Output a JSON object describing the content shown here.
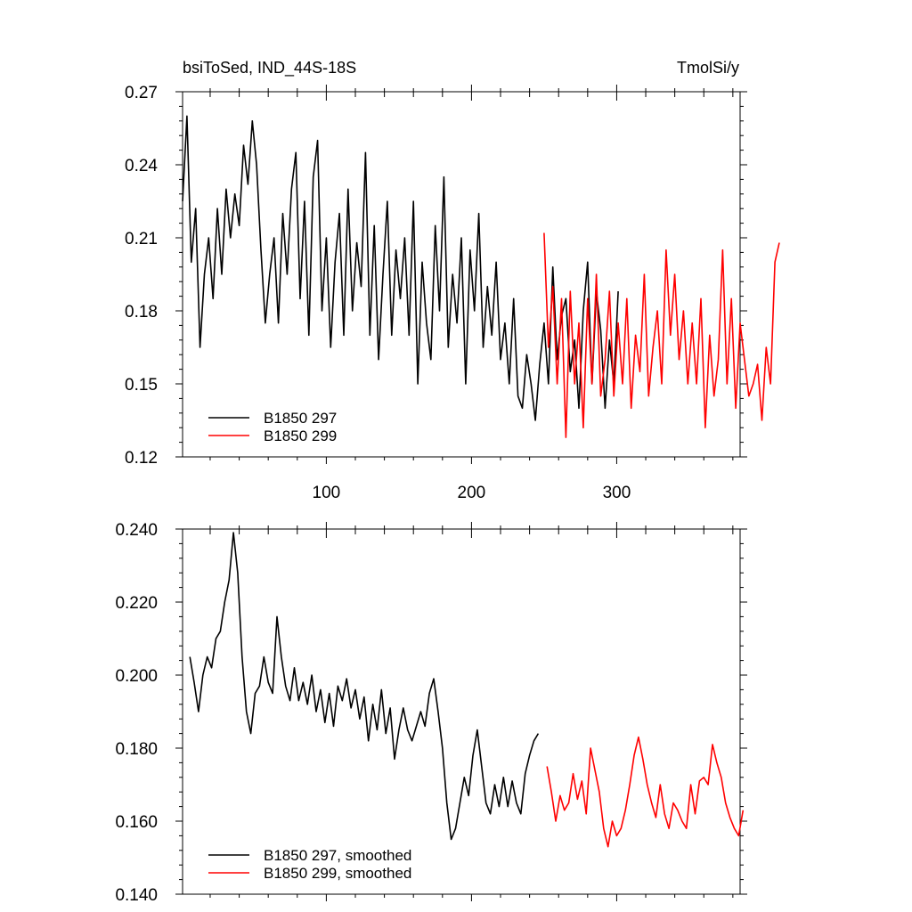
{
  "chart_data": [
    {
      "type": "line",
      "title": "bsiToSed, IND_44S-18S",
      "units_label": "TmolSi/y",
      "xlim": [
        1,
        385
      ],
      "ylim": [
        0.12,
        0.27
      ],
      "x_ticks": [
        100,
        200,
        300
      ],
      "y_ticks": [
        "0.12",
        "0.15",
        "0.18",
        "0.21",
        "0.24",
        "0.27"
      ],
      "legend_position": "bottom-left",
      "series": [
        {
          "name": "B1850 297",
          "color": "#000000",
          "x_start": 1,
          "x_step": 3,
          "values": [
            0.225,
            0.26,
            0.2,
            0.222,
            0.165,
            0.195,
            0.21,
            0.185,
            0.222,
            0.195,
            0.23,
            0.21,
            0.228,
            0.215,
            0.248,
            0.232,
            0.258,
            0.24,
            0.205,
            0.175,
            0.195,
            0.21,
            0.175,
            0.22,
            0.195,
            0.23,
            0.245,
            0.185,
            0.225,
            0.17,
            0.235,
            0.25,
            0.18,
            0.21,
            0.165,
            0.2,
            0.22,
            0.17,
            0.23,
            0.18,
            0.208,
            0.19,
            0.245,
            0.17,
            0.215,
            0.16,
            0.195,
            0.225,
            0.17,
            0.205,
            0.185,
            0.21,
            0.17,
            0.225,
            0.15,
            0.2,
            0.175,
            0.16,
            0.215,
            0.18,
            0.235,
            0.165,
            0.195,
            0.175,
            0.21,
            0.15,
            0.205,
            0.18,
            0.22,
            0.165,
            0.19,
            0.17,
            0.2,
            0.16,
            0.175,
            0.15,
            0.185,
            0.145,
            0.14,
            0.162,
            0.15,
            0.135,
            0.158,
            0.175,
            0.15,
            0.198,
            0.16,
            0.178,
            0.185,
            0.155,
            0.168,
            0.14,
            0.18,
            0.2,
            0.15,
            0.188,
            0.172,
            0.14,
            0.168,
            0.15,
            0.188
          ]
        },
        {
          "name": "B1850 299",
          "color": "#ff0000",
          "x_start": 250,
          "x_step": 3,
          "values": [
            0.212,
            0.165,
            0.19,
            0.15,
            0.185,
            0.128,
            0.188,
            0.15,
            0.175,
            0.132,
            0.185,
            0.15,
            0.195,
            0.145,
            0.16,
            0.188,
            0.145,
            0.175,
            0.15,
            0.185,
            0.14,
            0.17,
            0.155,
            0.195,
            0.145,
            0.165,
            0.18,
            0.15,
            0.205,
            0.17,
            0.195,
            0.16,
            0.18,
            0.15,
            0.175,
            0.15,
            0.185,
            0.132,
            0.17,
            0.145,
            0.16,
            0.205,
            0.15,
            0.185,
            0.14,
            0.175,
            0.16,
            0.145,
            0.15,
            0.158,
            0.135,
            0.165,
            0.15,
            0.2,
            0.208
          ]
        }
      ]
    },
    {
      "type": "line",
      "xlim": [
        1,
        385
      ],
      "ylim": [
        0.14,
        0.24
      ],
      "y_ticks": [
        "0.140",
        "0.160",
        "0.180",
        "0.200",
        "0.220",
        "0.240"
      ],
      "legend_position": "bottom-left",
      "series": [
        {
          "name": "B1850 297, smoothed",
          "color": "#000000",
          "x_start": 6,
          "x_step": 3,
          "values": [
            0.205,
            0.198,
            0.19,
            0.2,
            0.205,
            0.202,
            0.21,
            0.212,
            0.22,
            0.226,
            0.239,
            0.228,
            0.205,
            0.19,
            0.184,
            0.195,
            0.197,
            0.205,
            0.198,
            0.195,
            0.216,
            0.205,
            0.197,
            0.193,
            0.202,
            0.193,
            0.198,
            0.192,
            0.2,
            0.19,
            0.196,
            0.187,
            0.195,
            0.186,
            0.197,
            0.193,
            0.199,
            0.191,
            0.196,
            0.188,
            0.194,
            0.182,
            0.192,
            0.185,
            0.196,
            0.184,
            0.191,
            0.177,
            0.185,
            0.191,
            0.185,
            0.182,
            0.186,
            0.19,
            0.186,
            0.195,
            0.199,
            0.19,
            0.18,
            0.165,
            0.155,
            0.158,
            0.165,
            0.172,
            0.167,
            0.178,
            0.185,
            0.175,
            0.165,
            0.162,
            0.17,
            0.164,
            0.172,
            0.164,
            0.171,
            0.165,
            0.162,
            0.173,
            0.178,
            0.182,
            0.184
          ]
        },
        {
          "name": "B1850 299, smoothed",
          "color": "#ff0000",
          "x_start": 252,
          "x_step": 3,
          "values": [
            0.175,
            0.168,
            0.16,
            0.167,
            0.163,
            0.165,
            0.173,
            0.166,
            0.171,
            0.162,
            0.18,
            0.174,
            0.168,
            0.158,
            0.153,
            0.16,
            0.156,
            0.158,
            0.163,
            0.17,
            0.178,
            0.183,
            0.177,
            0.17,
            0.165,
            0.161,
            0.17,
            0.162,
            0.158,
            0.165,
            0.163,
            0.16,
            0.158,
            0.17,
            0.162,
            0.171,
            0.172,
            0.17,
            0.181,
            0.176,
            0.172,
            0.165,
            0.161,
            0.158,
            0.156,
            0.163
          ]
        }
      ]
    }
  ]
}
